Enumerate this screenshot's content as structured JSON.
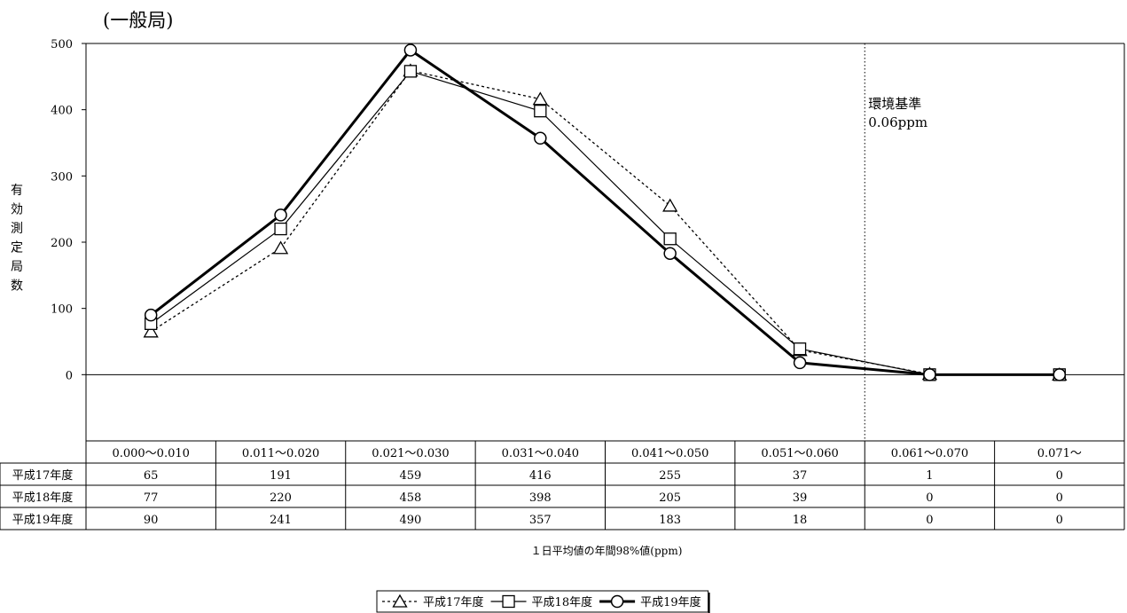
{
  "chart_data": {
    "type": "line",
    "title": "(一般局)",
    "ylabel": "有効測定局数",
    "xlabel": "１日平均値の年間98%値(ppm)",
    "ylim": [
      -100,
      500
    ],
    "yticks": [
      0,
      100,
      200,
      300,
      400,
      500
    ],
    "grid": false,
    "legend": "bottom",
    "categories": [
      "0.000～0.010",
      "0.011～0.020",
      "0.021～0.030",
      "0.031～0.040",
      "0.041～0.050",
      "0.051～0.060",
      "0.061～0.070",
      "0.071～"
    ],
    "series": [
      {
        "name": "平成17年度",
        "marker": "triangle",
        "line": "dotted-thin",
        "color": "#000000",
        "values": [
          65,
          191,
          459,
          416,
          255,
          37,
          1,
          0
        ]
      },
      {
        "name": "平成18年度",
        "marker": "square",
        "line": "solid-thin",
        "color": "#000000",
        "values": [
          77,
          220,
          458,
          398,
          205,
          39,
          0,
          0
        ]
      },
      {
        "name": "平成19年度",
        "marker": "circle",
        "line": "solid-thick",
        "color": "#000000",
        "values": [
          90,
          241,
          490,
          357,
          183,
          18,
          0,
          0
        ]
      }
    ],
    "reference_line": {
      "position_between": [
        "0.051～0.060",
        "0.061～0.070"
      ],
      "label_lines": [
        "環境基準",
        "0.06ppm"
      ]
    }
  }
}
